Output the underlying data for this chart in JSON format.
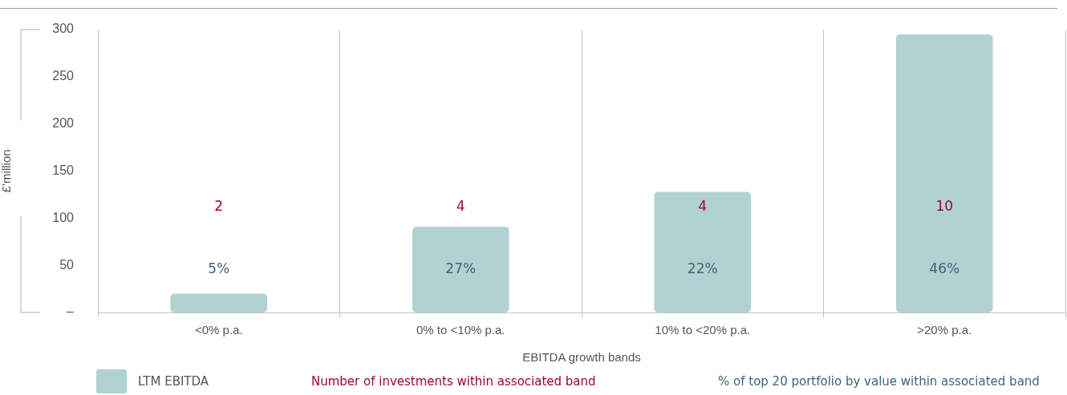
{
  "chart_data": {
    "type": "bar",
    "xlabel": "EBITDA growth bands",
    "ylabel": "£’million",
    "categories": [
      "<0% p.a.",
      "0% to <10% p.a.",
      "10% to <20% p.a.",
      ">20% p.a."
    ],
    "series": [
      {
        "name": "LTM EBITDA",
        "color": "#b1d2d2",
        "values": [
          20,
          91,
          128,
          295
        ]
      }
    ],
    "ylim": [
      0,
      300
    ],
    "yticks": [
      {
        "value": 0,
        "label": "–"
      },
      50,
      100,
      150,
      200,
      250,
      300
    ],
    "grid": "x",
    "legend": "bottom",
    "annotations": [
      "2",
      "4",
      "4",
      "10",
      "5%",
      "27%",
      "22%",
      "46%",
      "Number of investments within associated band",
      "% of top 20 portfolio by value within associated band"
    ]
  }
}
